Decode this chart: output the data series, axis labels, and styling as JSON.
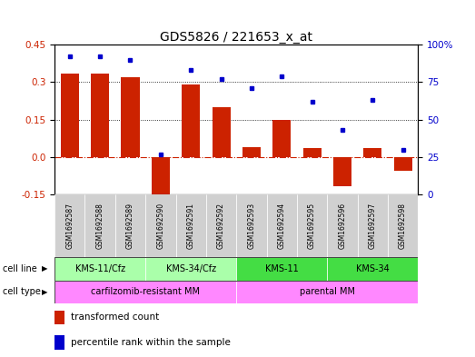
{
  "title": "GDS5826 / 221653_x_at",
  "samples": [
    "GSM1692587",
    "GSM1692588",
    "GSM1692589",
    "GSM1692590",
    "GSM1692591",
    "GSM1692592",
    "GSM1692593",
    "GSM1692594",
    "GSM1692595",
    "GSM1692596",
    "GSM1692597",
    "GSM1692598"
  ],
  "transformed_count": [
    0.335,
    0.335,
    0.32,
    -0.195,
    0.29,
    0.2,
    0.04,
    0.15,
    0.035,
    -0.115,
    0.035,
    -0.055
  ],
  "percentile_rank": [
    92,
    92,
    90,
    27,
    83,
    77,
    71,
    79,
    62,
    43,
    63,
    30
  ],
  "cell_line_groups": [
    {
      "label": "KMS-11/Cfz",
      "start": 0,
      "end": 3,
      "color": "#AAFFAA"
    },
    {
      "label": "KMS-34/Cfz",
      "start": 3,
      "end": 6,
      "color": "#AAFFAA"
    },
    {
      "label": "KMS-11",
      "start": 6,
      "end": 9,
      "color": "#44DD44"
    },
    {
      "label": "KMS-34",
      "start": 9,
      "end": 12,
      "color": "#44DD44"
    }
  ],
  "cell_type_groups": [
    {
      "label": "carfilzomib-resistant MM",
      "start": 0,
      "end": 6,
      "color": "#FF88FF"
    },
    {
      "label": "parental MM",
      "start": 6,
      "end": 12,
      "color": "#FF88FF"
    }
  ],
  "ylim_left": [
    -0.15,
    0.45
  ],
  "ylim_right": [
    0,
    100
  ],
  "yticks_left": [
    -0.15,
    0.0,
    0.15,
    0.3,
    0.45
  ],
  "yticks_right": [
    0,
    25,
    50,
    75,
    100
  ],
  "bar_color": "#CC2200",
  "dot_color": "#0000CC",
  "zero_line_color": "#CC2200",
  "grid_color": "black",
  "title_fontsize": 10,
  "fig_width": 5.23,
  "fig_height": 3.93,
  "dpi": 100
}
